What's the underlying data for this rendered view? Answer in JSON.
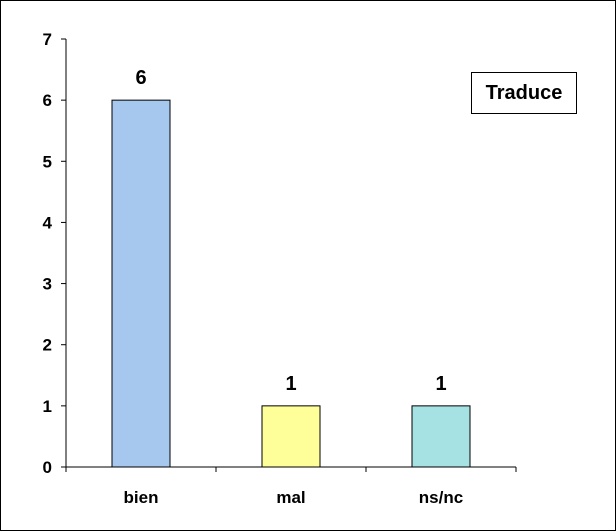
{
  "chart_data": {
    "type": "bar",
    "categories": [
      "bien",
      "mal",
      "ns/nc"
    ],
    "values": [
      6,
      1,
      1
    ],
    "colors": [
      "#a6c8ef",
      "#ffff99",
      "#a6e1e3"
    ],
    "data_labels": [
      "6",
      "1",
      "1"
    ],
    "legend": "Traduce",
    "legend_position": "top-right",
    "ylim": [
      0,
      7
    ],
    "y_ticks": [
      0,
      1,
      2,
      3,
      4,
      5,
      6,
      7
    ],
    "grid": false
  }
}
